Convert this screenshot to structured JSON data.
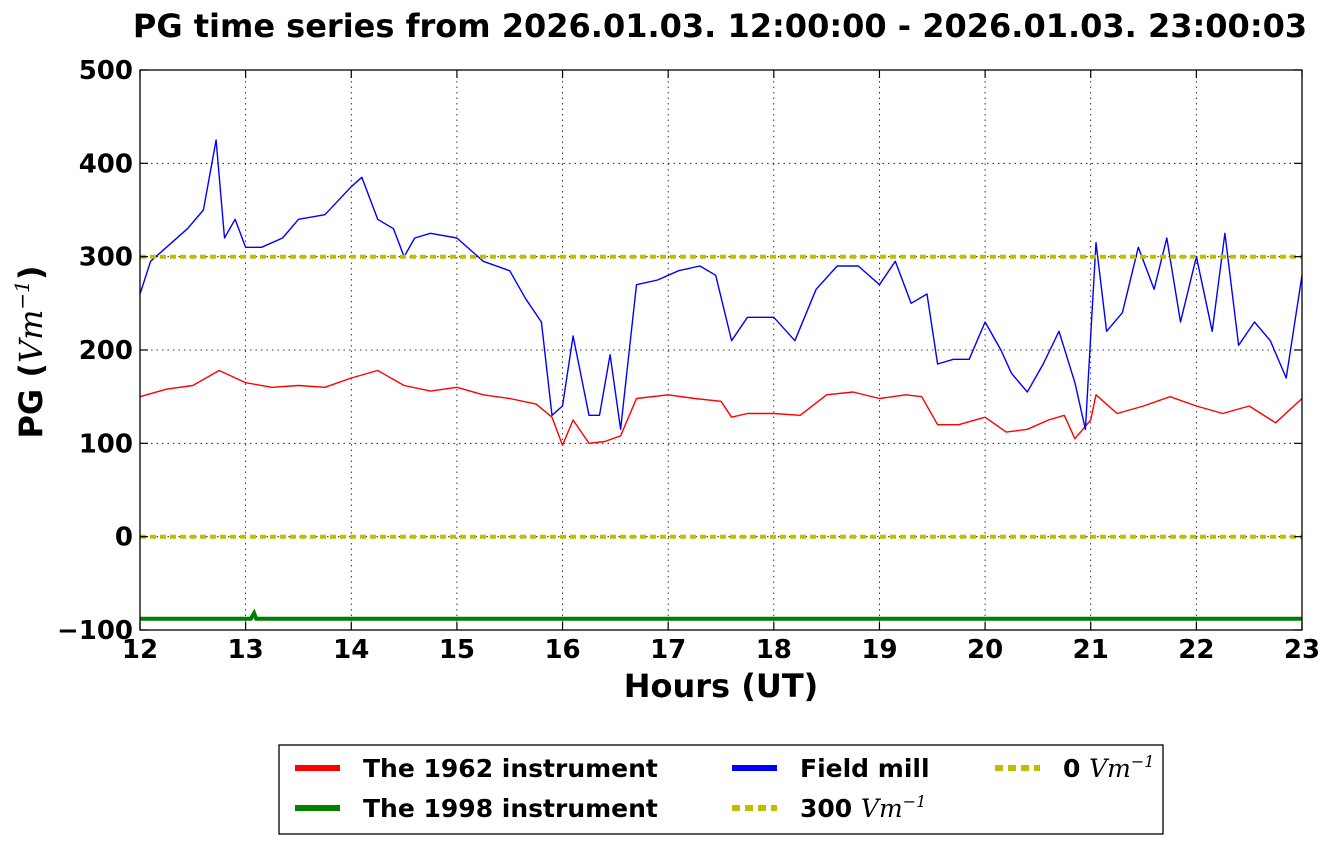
{
  "chart_data": {
    "type": "line",
    "title": "PG time series from 2026.01.03. 12:00:00 - 2026.01.03. 23:00:03",
    "xlabel": "Hours (UT)",
    "ylabel_prefix": "PG (",
    "ylabel_unit_base": "Vm",
    "ylabel_unit_exp": "−1",
    "ylabel_suffix": ")",
    "xlim": [
      12,
      23
    ],
    "ylim": [
      -100,
      500
    ],
    "x_ticks": [
      12,
      13,
      14,
      15,
      16,
      17,
      18,
      19,
      20,
      21,
      22,
      23
    ],
    "y_ticks": [
      -100,
      0,
      100,
      200,
      300,
      400,
      500
    ],
    "y_tick_labels": [
      "−100",
      "0",
      "100",
      "200",
      "300",
      "400",
      "500"
    ],
    "grid": true,
    "legend_position": "bottom-center",
    "series": [
      {
        "name": "The 1962 instrument",
        "color": "#ff0000",
        "style": "solid",
        "x": [
          12.0,
          12.25,
          12.5,
          12.75,
          13.0,
          13.25,
          13.5,
          13.75,
          14.0,
          14.25,
          14.5,
          14.75,
          15.0,
          15.25,
          15.5,
          15.75,
          15.9,
          16.0,
          16.1,
          16.25,
          16.4,
          16.55,
          16.7,
          17.0,
          17.25,
          17.5,
          17.6,
          17.75,
          18.0,
          18.25,
          18.5,
          18.75,
          19.0,
          19.25,
          19.4,
          19.55,
          19.75,
          20.0,
          20.2,
          20.4,
          20.6,
          20.75,
          20.85,
          21.0,
          21.05,
          21.25,
          21.5,
          21.75,
          22.0,
          22.25,
          22.5,
          22.75,
          23.0
        ],
        "y": [
          150,
          158,
          162,
          178,
          165,
          160,
          162,
          160,
          170,
          178,
          162,
          156,
          160,
          152,
          148,
          142,
          128,
          98,
          125,
          100,
          102,
          108,
          148,
          152,
          148,
          145,
          128,
          132,
          132,
          130,
          152,
          155,
          148,
          152,
          150,
          120,
          120,
          128,
          112,
          115,
          125,
          130,
          105,
          125,
          152,
          132,
          140,
          150,
          140,
          132,
          140,
          122,
          148
        ]
      },
      {
        "name": "The 1998 instrument",
        "color": "#008000",
        "style": "solid",
        "x": [
          12.0,
          13.0,
          13.05,
          13.08,
          13.1,
          14.0,
          15.0,
          16.0,
          17.0,
          18.0,
          19.0,
          20.0,
          21.0,
          22.0,
          23.0
        ],
        "y": [
          -88,
          -88,
          -88,
          -82,
          -88,
          -88,
          -88,
          -88,
          -88,
          -88,
          -88,
          -88,
          -88,
          -88,
          -88
        ]
      },
      {
        "name": "Field mill",
        "color": "#0000ff",
        "style": "solid",
        "x": [
          12.0,
          12.1,
          12.25,
          12.45,
          12.6,
          12.72,
          12.8,
          12.9,
          13.0,
          13.15,
          13.35,
          13.5,
          13.75,
          14.0,
          14.1,
          14.25,
          14.4,
          14.5,
          14.6,
          14.75,
          15.0,
          15.25,
          15.5,
          15.65,
          15.8,
          15.9,
          16.0,
          16.1,
          16.25,
          16.35,
          16.45,
          16.55,
          16.7,
          16.9,
          17.1,
          17.3,
          17.45,
          17.6,
          17.75,
          18.0,
          18.2,
          18.4,
          18.6,
          18.8,
          19.0,
          19.15,
          19.3,
          19.45,
          19.55,
          19.7,
          19.85,
          20.0,
          20.15,
          20.25,
          20.4,
          20.55,
          20.7,
          20.85,
          20.95,
          21.05,
          21.15,
          21.3,
          21.45,
          21.6,
          21.72,
          21.85,
          22.0,
          22.15,
          22.27,
          22.4,
          22.55,
          22.7,
          22.85,
          23.0
        ],
        "y": [
          260,
          295,
          310,
          330,
          350,
          425,
          320,
          340,
          310,
          310,
          320,
          340,
          345,
          375,
          385,
          340,
          330,
          300,
          320,
          325,
          320,
          295,
          285,
          255,
          230,
          130,
          140,
          215,
          130,
          130,
          195,
          115,
          270,
          275,
          285,
          290,
          280,
          210,
          235,
          235,
          210,
          265,
          290,
          290,
          270,
          295,
          250,
          260,
          185,
          190,
          190,
          230,
          200,
          175,
          155,
          185,
          220,
          165,
          115,
          315,
          220,
          240,
          310,
          265,
          320,
          230,
          300,
          220,
          325,
          205,
          230,
          210,
          170,
          280
        ]
      },
      {
        "name": "300 Vm−1",
        "legend_value": "300",
        "legend_unit_base": "Vm",
        "legend_unit_exp": "−1",
        "color": "#bfbf00",
        "style": "dotted",
        "x": [
          12,
          23
        ],
        "y": [
          300,
          300
        ]
      },
      {
        "name": "0 Vm−1",
        "legend_value": "0",
        "legend_unit_base": "Vm",
        "legend_unit_exp": "−1",
        "color": "#bfbf00",
        "style": "dotted",
        "x": [
          12,
          23
        ],
        "y": [
          0,
          0
        ]
      }
    ]
  }
}
